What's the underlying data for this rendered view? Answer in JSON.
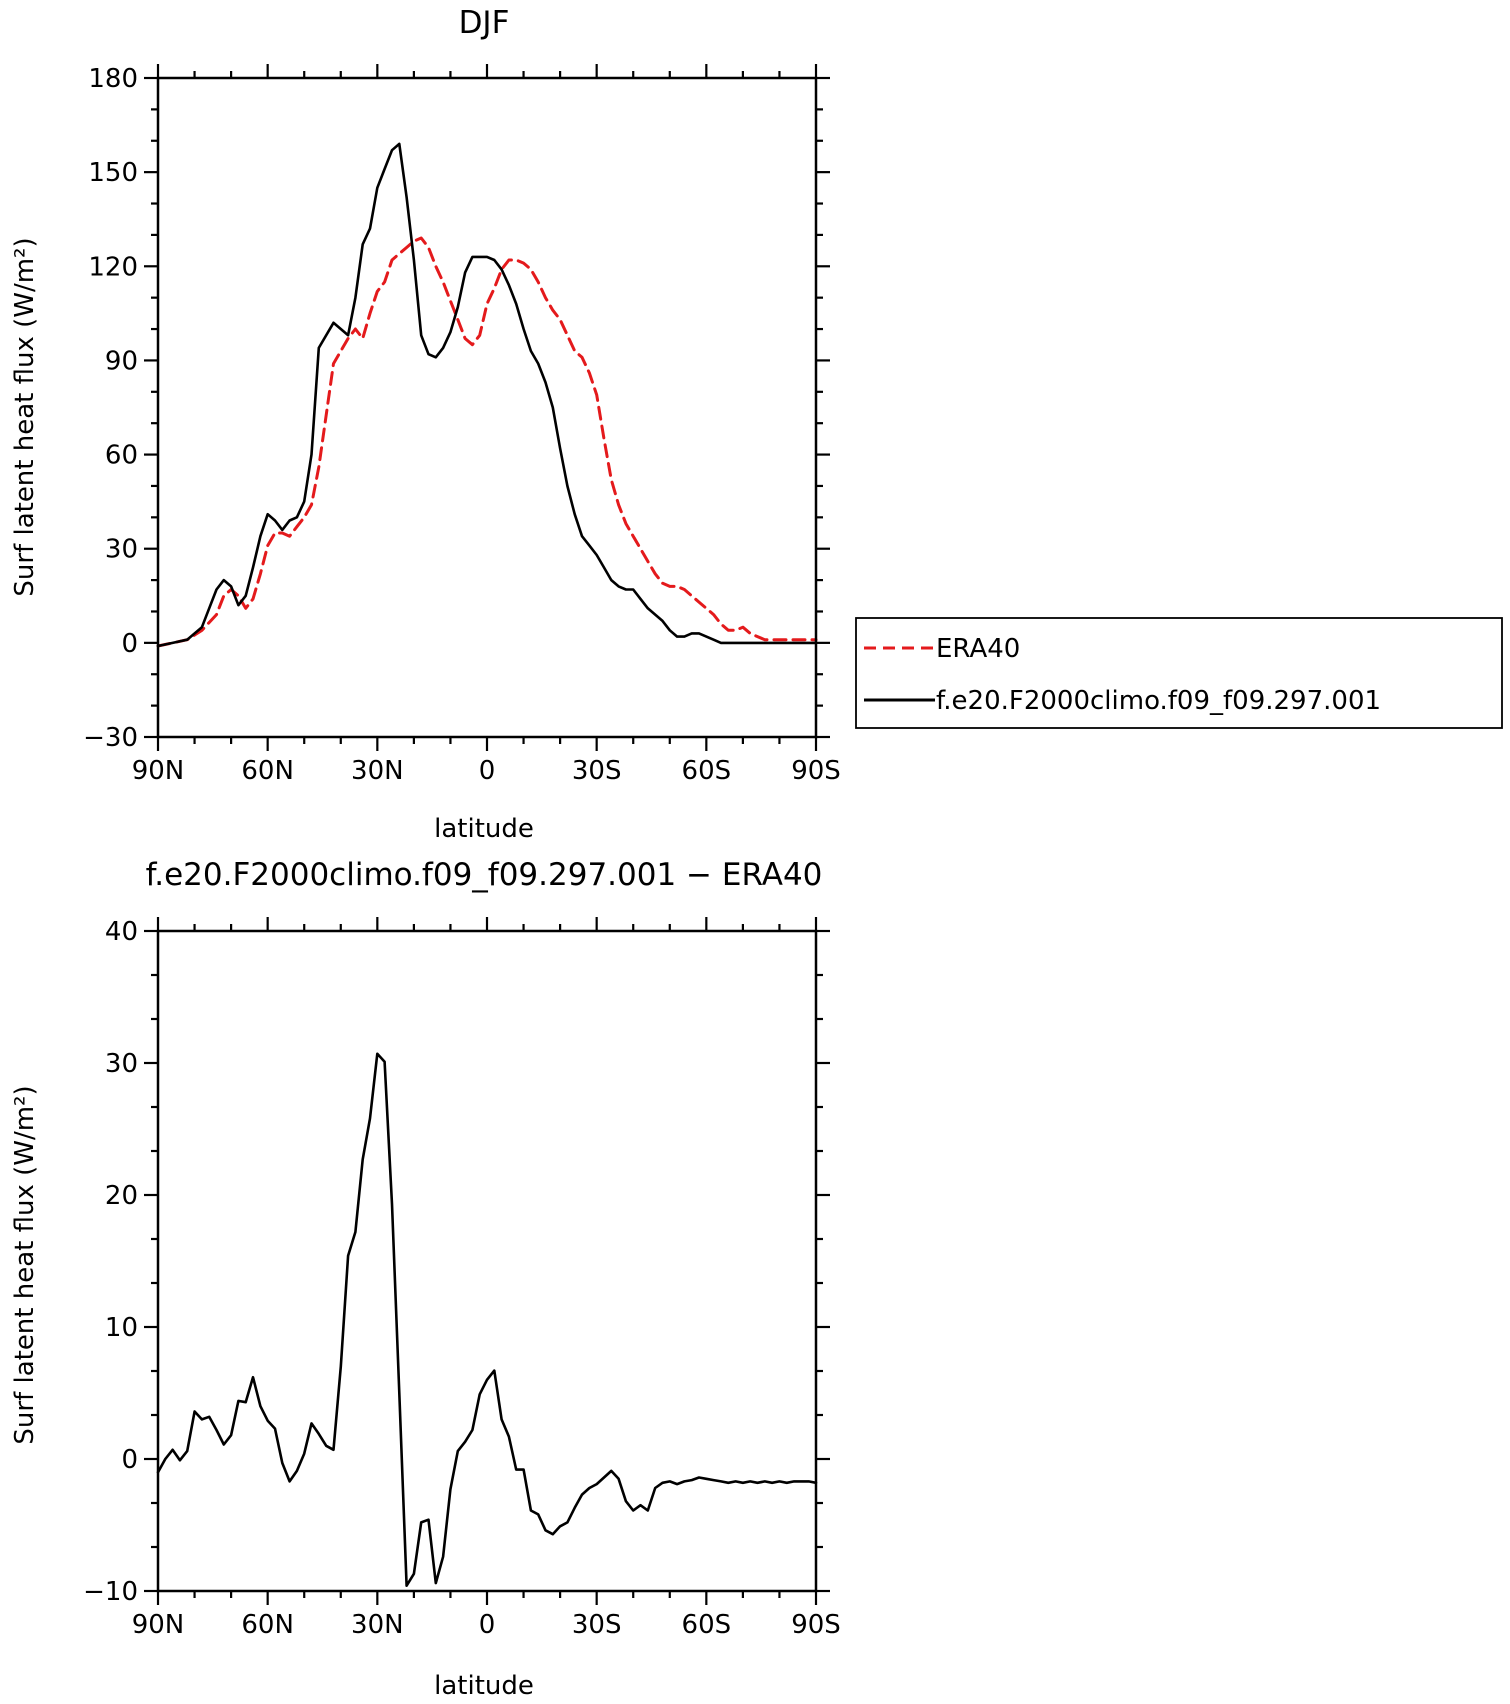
{
  "chart_data": [
    {
      "type": "line",
      "title": "DJF",
      "xlabel": "latitude",
      "ylabel": "Surf latent heat flux (W/m²)",
      "xlim": [
        90,
        -90
      ],
      "ylim": [
        -30,
        180
      ],
      "xticks": [
        90,
        60,
        30,
        0,
        -30,
        -60,
        -90
      ],
      "xtick_labels": [
        "90N",
        "60N",
        "30N",
        "0",
        "30S",
        "60S",
        "90S"
      ],
      "yticks": [
        -30,
        0,
        30,
        60,
        90,
        120,
        150,
        180
      ],
      "ytick_labels": [
        "−30",
        "0",
        "30",
        "60",
        "90",
        "120",
        "150",
        "180"
      ],
      "grid": false,
      "legend": "right",
      "series": [
        {
          "name": "ERA40",
          "color": "#e41a1c",
          "style": "dashed",
          "x": [
            90,
            86,
            82,
            78,
            74,
            72,
            70,
            68,
            66,
            64,
            62,
            60,
            58,
            56,
            54,
            52,
            50,
            48,
            46,
            42,
            38,
            36,
            34,
            32,
            30,
            28,
            26,
            24,
            22,
            20,
            18,
            16,
            14,
            12,
            10,
            8,
            6,
            4,
            2,
            0,
            -2,
            -4,
            -6,
            -8,
            -10,
            -12,
            -14,
            -16,
            -18,
            -20,
            -22,
            -24,
            -26,
            -28,
            -30,
            -32,
            -34,
            -36,
            -38,
            -40,
            -42,
            -44,
            -46,
            -48,
            -50,
            -52,
            -54,
            -56,
            -58,
            -60,
            -62,
            -64,
            -66,
            -68,
            -70,
            -72,
            -74,
            -76,
            -78,
            -80,
            -82,
            -84,
            -86,
            -88,
            -90
          ],
          "y": [
            -1,
            0,
            1,
            4,
            9,
            15,
            17,
            15,
            11,
            14,
            22,
            31,
            35,
            35,
            34,
            37,
            40,
            44,
            56,
            89,
            97,
            100,
            97,
            105,
            112,
            115,
            122,
            124,
            126,
            128,
            129,
            126,
            120,
            115,
            109,
            103,
            97,
            95,
            98,
            108,
            113,
            119,
            122,
            122,
            121,
            119,
            115,
            110,
            106,
            103,
            98,
            93,
            91,
            86,
            79,
            65,
            52,
            44,
            38,
            34,
            30,
            26,
            22,
            19,
            18,
            18,
            17,
            15,
            13,
            11,
            9,
            6,
            4,
            4,
            5,
            3,
            2,
            1,
            1,
            1,
            1,
            1,
            1,
            1,
            1
          ]
        },
        {
          "name": "f.e20.F2000climo.f09_f09.297.001",
          "color": "#000000",
          "style": "solid",
          "x": [
            90,
            86,
            82,
            78,
            76,
            74,
            72,
            70,
            68,
            66,
            64,
            62,
            60,
            58,
            56,
            54,
            52,
            50,
            48,
            46,
            42,
            38,
            36,
            34,
            32,
            30,
            28,
            26,
            24,
            22,
            20,
            18,
            16,
            14,
            12,
            10,
            8,
            6,
            4,
            2,
            0,
            -2,
            -4,
            -6,
            -8,
            -10,
            -12,
            -14,
            -16,
            -18,
            -20,
            -22,
            -24,
            -26,
            -28,
            -30,
            -32,
            -34,
            -36,
            -38,
            -40,
            -42,
            -44,
            -46,
            -48,
            -50,
            -52,
            -54,
            -56,
            -58,
            -60,
            -62,
            -64,
            -66,
            -68,
            -70,
            -72,
            -74,
            -76,
            -78,
            -80,
            -82,
            -84,
            -86,
            -88,
            -90
          ],
          "y": [
            -1,
            0,
            1,
            5,
            11,
            17,
            20,
            18,
            12,
            15,
            24,
            34,
            41,
            39,
            36,
            39,
            40,
            45,
            60,
            94,
            102,
            98,
            110,
            127,
            132,
            145,
            151,
            157,
            159,
            142,
            122,
            98,
            92,
            91,
            94,
            99,
            107,
            118,
            123,
            123,
            123,
            122,
            119,
            114,
            108,
            100,
            93,
            89,
            83,
            75,
            62,
            50,
            41,
            34,
            31,
            28,
            24,
            20,
            18,
            17,
            17,
            14,
            11,
            9,
            7,
            4,
            2,
            2,
            3,
            3,
            2,
            1,
            0,
            0,
            0,
            0,
            0,
            0,
            0,
            0,
            0,
            0,
            0,
            0,
            0,
            0
          ]
        }
      ]
    },
    {
      "type": "line",
      "title": "f.e20.F2000climo.f09_f09.297.001 − ERA40",
      "xlabel": "latitude",
      "ylabel": "Surf latent heat flux (W/m²)",
      "xlim": [
        90,
        -90
      ],
      "ylim": [
        -10,
        40
      ],
      "xticks": [
        90,
        60,
        30,
        0,
        -30,
        -60,
        -90
      ],
      "xtick_labels": [
        "90N",
        "60N",
        "30N",
        "0",
        "30S",
        "60S",
        "90S"
      ],
      "yticks": [
        -10,
        0,
        10,
        20,
        30,
        40
      ],
      "ytick_labels": [
        "−10",
        "0",
        "10",
        "20",
        "30",
        "40"
      ],
      "grid": false,
      "series": [
        {
          "color": "#000000",
          "style": "solid",
          "x": [
            90,
            88,
            86,
            84,
            82,
            80,
            78,
            76,
            74,
            72,
            70,
            68,
            66,
            64,
            62,
            60,
            58,
            56,
            54,
            52,
            50,
            48,
            46,
            44,
            42,
            40,
            38,
            36,
            34,
            32,
            30,
            28,
            26,
            24,
            22,
            20,
            18,
            16,
            14,
            12,
            10,
            8,
            6,
            4,
            2,
            0,
            -2,
            -4,
            -6,
            -8,
            -10,
            -12,
            -14,
            -16,
            -18,
            -20,
            -22,
            -24,
            -26,
            -28,
            -30,
            -32,
            -34,
            -36,
            -38,
            -40,
            -42,
            -44,
            -46,
            -48,
            -50,
            -52,
            -54,
            -56,
            -58,
            -60,
            -62,
            -64,
            -66,
            -68,
            -70,
            -72,
            -74,
            -76,
            -78,
            -80,
            -82,
            -84,
            -86,
            -88,
            -90
          ],
          "y": [
            -1,
            0,
            0.7,
            -0.1,
            0.6,
            3.6,
            3,
            3.2,
            2.2,
            1.1,
            1.8,
            4.4,
            4.3,
            6.2,
            4,
            2.9,
            2.3,
            -0.3,
            -1.7,
            -0.9,
            0.4,
            2.7,
            1.9,
            1,
            0.7,
            7,
            15.4,
            17.2,
            22.7,
            25.8,
            30.7,
            30.1,
            19.3,
            5,
            -9.6,
            -8.7,
            -4.8,
            -4.6,
            -9.4,
            -7.4,
            -2.3,
            0.6,
            1.3,
            2.2,
            4.9,
            6,
            6.7,
            3,
            1.7,
            -0.8,
            -0.8,
            -3.9,
            -4.2,
            -5.4,
            -5.7,
            -5.1,
            -4.8,
            -3.7,
            -2.7,
            -2.2,
            -1.9,
            -1.4,
            -0.9,
            -1.5,
            -3.2,
            -3.9,
            -3.5,
            -3.9,
            -2.2,
            -1.8,
            -1.7,
            -1.9,
            -1.7,
            -1.6,
            -1.4,
            -1.5,
            -1.6,
            -1.7,
            -1.8,
            -1.7,
            -1.8,
            -1.7,
            -1.8,
            -1.7,
            -1.8,
            -1.7,
            -1.8,
            -1.7,
            -1.7,
            -1.7,
            -1.8
          ]
        }
      ]
    }
  ]
}
